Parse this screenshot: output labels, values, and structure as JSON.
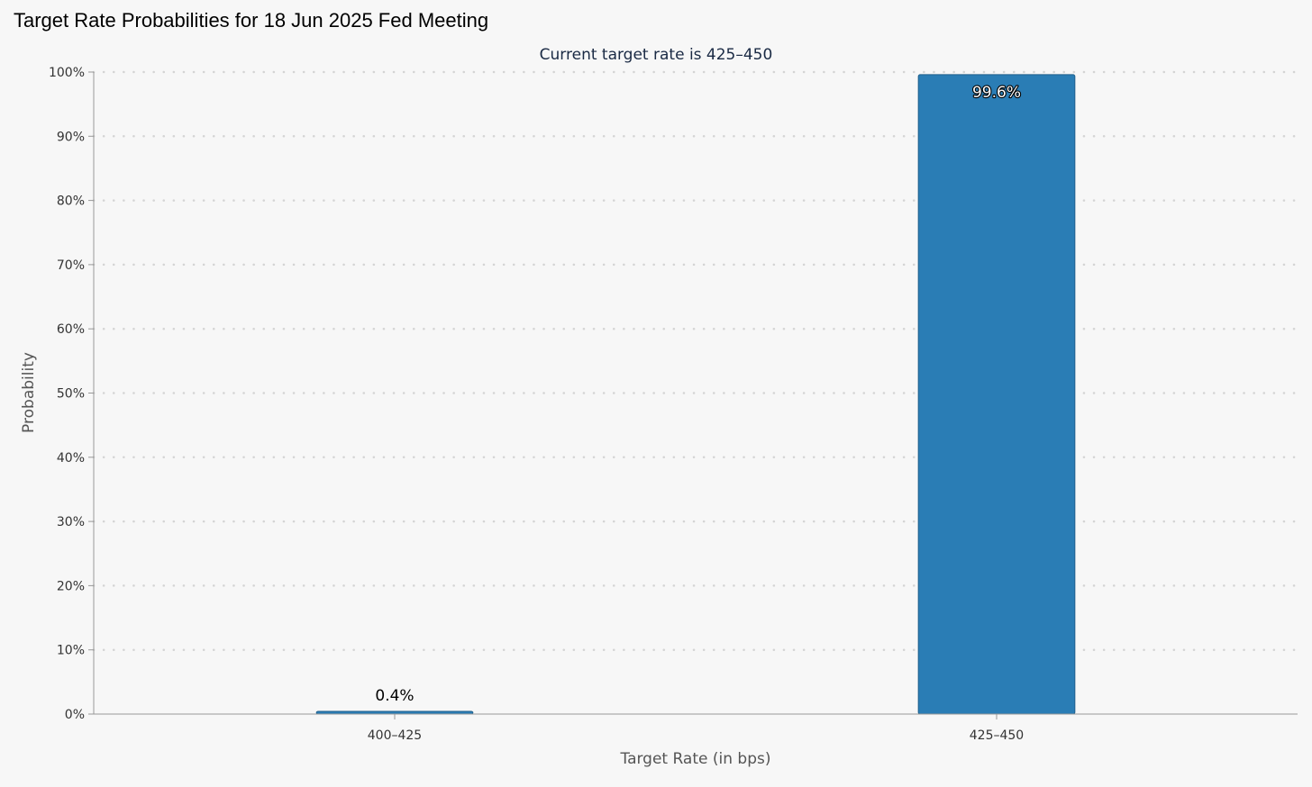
{
  "title": "Target Rate Probabilities for 18 Jun 2025 Fed Meeting",
  "colors": {
    "background": "#f7f7f7",
    "bar": "#2a7db5",
    "bar_border": "#1f5f8b",
    "grid": "#d4d4d4",
    "axis": "#999999"
  },
  "chart_data": {
    "type": "bar",
    "subtitle": "Current target rate is 425–450",
    "xlabel": "Target Rate (in bps)",
    "ylabel": "Probability",
    "categories": [
      "400–425",
      "425–450"
    ],
    "values": [
      0.4,
      99.6
    ],
    "data_labels": [
      "0.4%",
      "99.6%"
    ],
    "ylim": [
      0,
      100
    ],
    "yticks": [
      0,
      10,
      20,
      30,
      40,
      50,
      60,
      70,
      80,
      90,
      100
    ],
    "ytick_labels": [
      "0%",
      "10%",
      "20%",
      "30%",
      "40%",
      "50%",
      "60%",
      "70%",
      "80%",
      "90%",
      "100%"
    ],
    "grid": "horizontal dotted",
    "legend": "none"
  }
}
